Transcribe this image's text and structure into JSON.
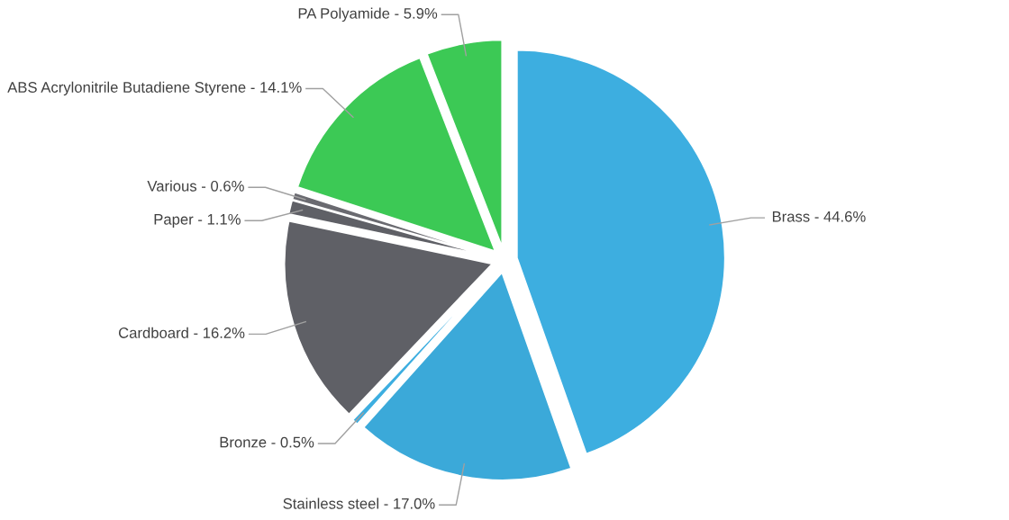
{
  "chart_data": {
    "type": "pie",
    "categories": [
      "Brass - 44.6%",
      "Stainless steel - 17.0%",
      "Bronze - 0.5%",
      "Cardboard - 16.2%",
      "Paper - 1.1%",
      "Various - 0.6%",
      "ABS Acrylonitrile Butadiene Styrene - 14.1%",
      "PA Polyamide - 5.9%"
    ],
    "values": [
      44.6,
      17.0,
      0.5,
      16.2,
      1.1,
      0.6,
      14.1,
      5.9
    ],
    "colors": [
      "#3daee0",
      "#3ba9d9",
      "#3daee0",
      "#5f6066",
      "#5f6066",
      "#6a6a70",
      "#3cc955",
      "#3cc955"
    ],
    "legend": false
  }
}
